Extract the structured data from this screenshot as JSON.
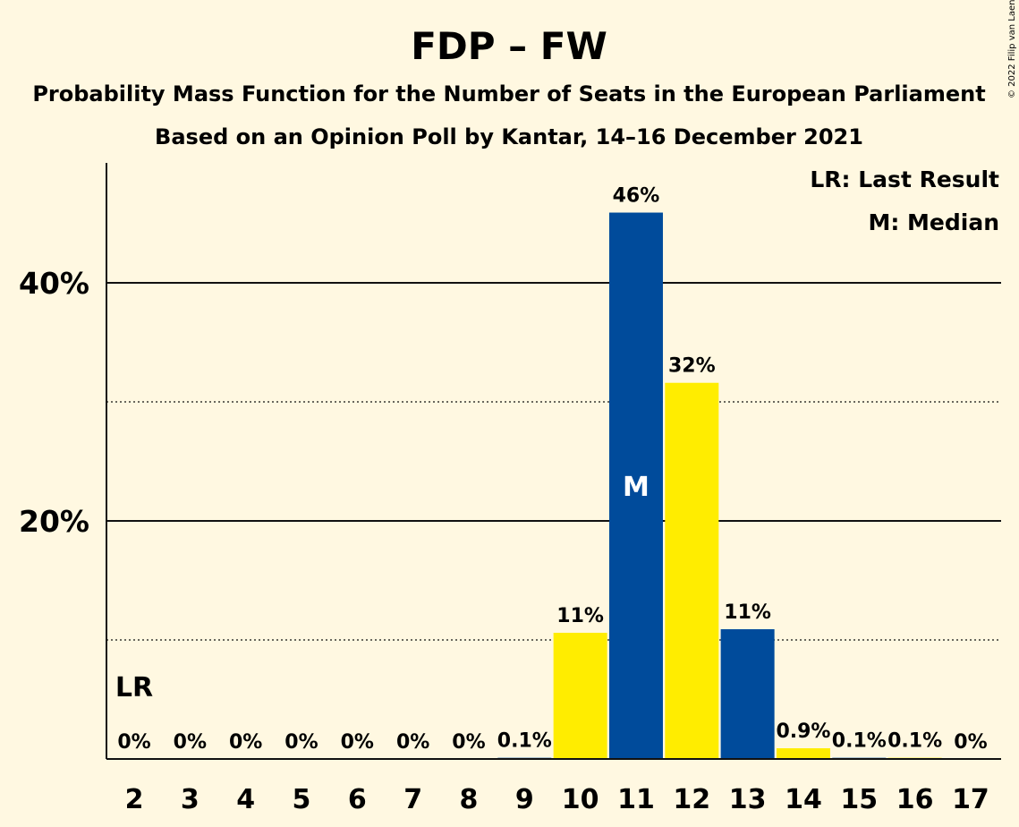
{
  "title": "FDP – FW",
  "subtitle1": "Probability Mass Function for the Number of Seats in the European Parliament",
  "subtitle2": "Based on an Opinion Poll by Kantar, 14–16 December 2021",
  "copyright": "© 2022 Filip van Laenen",
  "legend": {
    "lr": "LR: Last Result",
    "median": "M: Median"
  },
  "colors": {
    "yellow": "#FFED00",
    "blue": "#004B9B",
    "background": "#FFF8E1"
  },
  "chart_data": {
    "type": "bar",
    "x": [
      2,
      3,
      4,
      5,
      6,
      7,
      8,
      9,
      10,
      11,
      12,
      13,
      14,
      15,
      16,
      17
    ],
    "values": [
      0,
      0,
      0,
      0,
      0,
      0,
      0,
      0.1,
      10.6,
      45.9,
      31.6,
      10.9,
      0.9,
      0.1,
      0.1,
      0
    ],
    "labels": [
      "0%",
      "0%",
      "0%",
      "0%",
      "0%",
      "0%",
      "0%",
      "0.1%",
      "11%",
      "46%",
      "32%",
      "11%",
      "0.9%",
      "0.1%",
      "0.1%",
      "0%"
    ],
    "bar_colors": [
      "yellow",
      "blue",
      "yellow",
      "blue",
      "yellow",
      "blue",
      "yellow",
      "blue",
      "yellow",
      "blue",
      "yellow",
      "blue",
      "yellow",
      "blue",
      "yellow",
      "blue"
    ],
    "yticks": [
      {
        "value": 20,
        "label": "20%"
      },
      {
        "value": 40,
        "label": "40%"
      }
    ],
    "minor_gridlines": [
      10,
      30
    ],
    "ylim": [
      0,
      50
    ],
    "last_result": {
      "x": 2,
      "label": "LR"
    },
    "median": {
      "x": 11,
      "label": "M"
    },
    "legend_position": "top-right"
  }
}
